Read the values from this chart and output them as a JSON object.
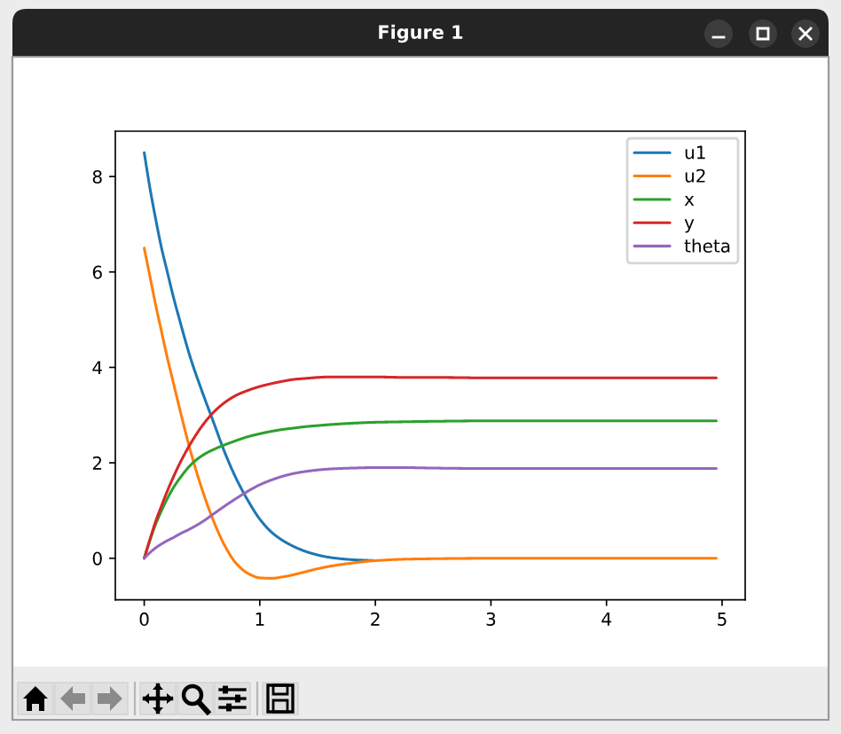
{
  "chart_data": {
    "type": "line",
    "annotations": [
      "Figure 1"
    ],
    "x": [
      0,
      0.05,
      0.1,
      0.15,
      0.2,
      0.25,
      0.3,
      0.4,
      0.5,
      0.6,
      0.7,
      0.8,
      0.9,
      1.0,
      1.1,
      1.2,
      1.3,
      1.4,
      1.5,
      1.6,
      1.8,
      2.0,
      2.25,
      2.5,
      3.0,
      3.5,
      4.0,
      4.5,
      4.95
    ],
    "series": [
      {
        "name": "u1",
        "color": "#1f77b4",
        "values": [
          8.5,
          7.75,
          7.1,
          6.5,
          6.0,
          5.5,
          5.05,
          4.2,
          3.5,
          2.85,
          2.2,
          1.65,
          1.2,
          0.82,
          0.55,
          0.37,
          0.24,
          0.14,
          0.07,
          0.02,
          -0.03,
          -0.05,
          null,
          null,
          null,
          null,
          null,
          null,
          null
        ]
      },
      {
        "name": "u2",
        "color": "#ff7f0e",
        "values": [
          6.5,
          5.9,
          5.3,
          4.75,
          4.2,
          3.7,
          3.2,
          2.25,
          1.45,
          0.78,
          0.25,
          -0.12,
          -0.32,
          -0.41,
          -0.42,
          -0.39,
          -0.34,
          -0.28,
          -0.22,
          -0.17,
          -0.1,
          -0.05,
          -0.02,
          -0.01,
          0,
          0,
          0,
          0,
          0
        ]
      },
      {
        "name": "x",
        "color": "#2ca02c",
        "values": [
          0,
          0.38,
          0.72,
          1.0,
          1.25,
          1.47,
          1.65,
          1.95,
          2.15,
          2.28,
          2.38,
          2.47,
          2.55,
          2.61,
          2.66,
          2.7,
          2.73,
          2.76,
          2.78,
          2.8,
          2.83,
          2.85,
          2.86,
          2.87,
          2.88,
          2.88,
          2.88,
          2.88,
          2.88
        ]
      },
      {
        "name": "y",
        "color": "#d62728",
        "values": [
          0,
          0.4,
          0.78,
          1.1,
          1.41,
          1.69,
          1.95,
          2.4,
          2.77,
          3.06,
          3.27,
          3.42,
          3.52,
          3.6,
          3.66,
          3.71,
          3.75,
          3.77,
          3.79,
          3.8,
          3.8,
          3.8,
          3.79,
          3.79,
          3.78,
          3.78,
          3.78,
          3.78,
          3.78
        ]
      },
      {
        "name": "theta",
        "color": "#9467bd",
        "values": [
          0,
          0.12,
          0.22,
          0.3,
          0.37,
          0.43,
          0.5,
          0.62,
          0.76,
          0.93,
          1.1,
          1.26,
          1.41,
          1.54,
          1.64,
          1.72,
          1.78,
          1.82,
          1.85,
          1.87,
          1.89,
          1.9,
          1.9,
          1.89,
          1.88,
          1.88,
          1.88,
          1.88,
          1.88
        ]
      }
    ],
    "xlim": [
      -0.25,
      5.2
    ],
    "xticks": [
      0,
      1,
      2,
      3,
      4,
      5
    ],
    "ylim": [
      -0.87,
      8.95
    ],
    "yticks": [
      0,
      2,
      4,
      6,
      8
    ],
    "legend": "top right"
  }
}
